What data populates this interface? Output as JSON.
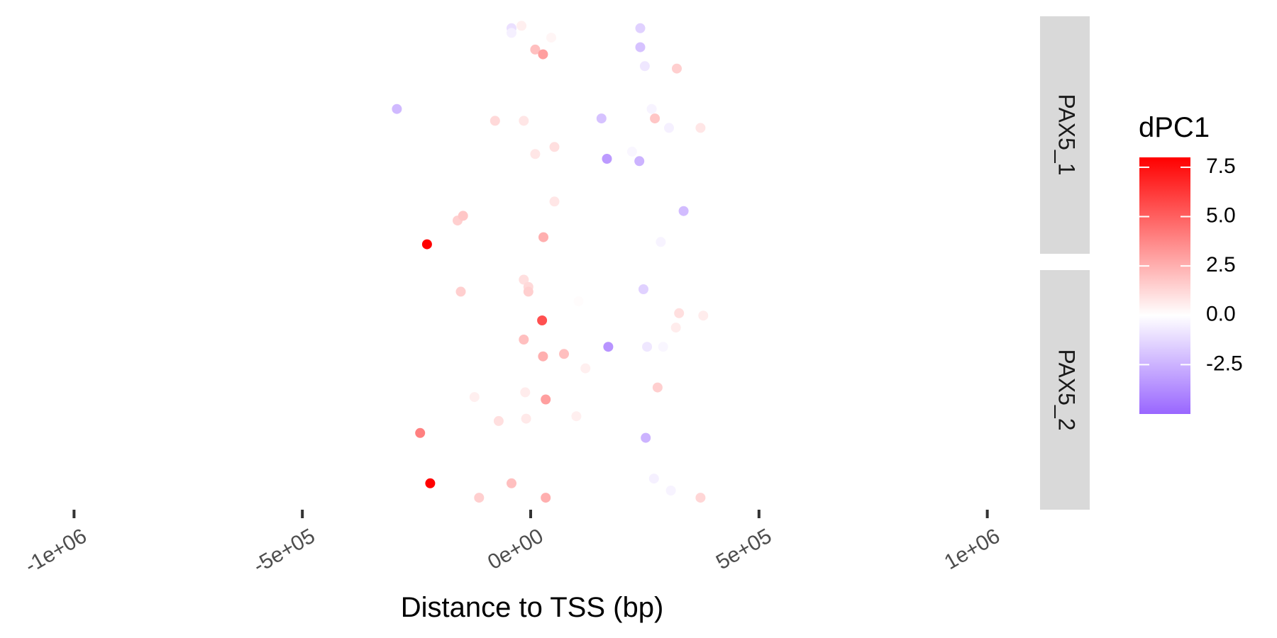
{
  "chart_data": {
    "type": "scatter",
    "xlabel": "Distance to TSS (bp)",
    "x_ticks": [
      {
        "value": -1000000,
        "label": "-1e+06"
      },
      {
        "value": -500000,
        "label": "-5e+05"
      },
      {
        "value": 0,
        "label": "0e+00"
      },
      {
        "value": 500000,
        "label": "5e+05"
      },
      {
        "value": 1000000,
        "label": "1e+06"
      }
    ],
    "xlim": [
      -1100000,
      1100000
    ],
    "grid": false,
    "legend": {
      "title": "dPC1",
      "position": "right",
      "ticks": [
        {
          "value": 7.5,
          "label": "7.5"
        },
        {
          "value": 5.0,
          "label": "5.0"
        },
        {
          "value": 2.5,
          "label": "2.5"
        },
        {
          "value": 0.0,
          "label": "0.0"
        },
        {
          "value": -2.5,
          "label": "-2.5"
        }
      ],
      "range": [
        -5.0,
        8.0
      ],
      "colors": {
        "low": "#9966ff",
        "mid": "#ffffff",
        "high": "#ff0000"
      }
    },
    "panels": [
      {
        "name": "PAX5_1",
        "points": [
          {
            "x": -42000,
            "y": 0.95,
            "v": -1.0
          },
          {
            "x": -20000,
            "y": 0.96,
            "v": 0.5
          },
          {
            "x": 240000,
            "y": 0.95,
            "v": -1.5
          },
          {
            "x": -42000,
            "y": 0.93,
            "v": -0.5
          },
          {
            "x": 45000,
            "y": 0.91,
            "v": 0.3
          },
          {
            "x": 10000,
            "y": 0.86,
            "v": 2.0
          },
          {
            "x": 27000,
            "y": 0.84,
            "v": 3.0
          },
          {
            "x": 240000,
            "y": 0.87,
            "v": -2.0
          },
          {
            "x": 320000,
            "y": 0.78,
            "v": 1.5
          },
          {
            "x": 250000,
            "y": 0.79,
            "v": -0.8
          },
          {
            "x": -293000,
            "y": 0.61,
            "v": -2.3
          },
          {
            "x": 265000,
            "y": 0.61,
            "v": -0.4
          },
          {
            "x": -78000,
            "y": 0.56,
            "v": 1.2
          },
          {
            "x": -15000,
            "y": 0.56,
            "v": 0.8
          },
          {
            "x": 155000,
            "y": 0.57,
            "v": -2.0
          },
          {
            "x": 272000,
            "y": 0.57,
            "v": 1.8
          },
          {
            "x": 303000,
            "y": 0.53,
            "v": -0.5
          },
          {
            "x": 372000,
            "y": 0.53,
            "v": 0.8
          },
          {
            "x": 52000,
            "y": 0.45,
            "v": 1.0
          },
          {
            "x": 10000,
            "y": 0.42,
            "v": 0.8
          },
          {
            "x": 167000,
            "y": 0.4,
            "v": -3.3
          },
          {
            "x": 222000,
            "y": 0.43,
            "v": -0.3
          },
          {
            "x": 238000,
            "y": 0.39,
            "v": -2.5
          },
          {
            "x": 52000,
            "y": 0.22,
            "v": 0.8
          },
          {
            "x": 335000,
            "y": 0.18,
            "v": -2.2
          },
          {
            "x": -160000,
            "y": 0.14,
            "v": 1.5
          },
          {
            "x": -148000,
            "y": 0.16,
            "v": 1.8
          },
          {
            "x": 28000,
            "y": 0.07,
            "v": 2.5
          },
          {
            "x": -227000,
            "y": 0.04,
            "v": 8.0
          },
          {
            "x": 285000,
            "y": 0.05,
            "v": -0.4
          }
        ]
      },
      {
        "name": "PAX5_2",
        "points": [
          {
            "x": -15000,
            "y": 0.96,
            "v": 1.0
          },
          {
            "x": -5000,
            "y": 0.93,
            "v": 1.2
          },
          {
            "x": -5000,
            "y": 0.91,
            "v": 1.5
          },
          {
            "x": -153000,
            "y": 0.91,
            "v": 1.5
          },
          {
            "x": 247000,
            "y": 0.92,
            "v": -1.5
          },
          {
            "x": 105000,
            "y": 0.87,
            "v": 0.1
          },
          {
            "x": 25000,
            "y": 0.79,
            "v": 5.5
          },
          {
            "x": 325000,
            "y": 0.82,
            "v": 1.0
          },
          {
            "x": 378000,
            "y": 0.81,
            "v": 0.6
          },
          {
            "x": 318000,
            "y": 0.76,
            "v": 0.6
          },
          {
            "x": -15000,
            "y": 0.71,
            "v": 2.0
          },
          {
            "x": 170000,
            "y": 0.68,
            "v": -3.5
          },
          {
            "x": 255000,
            "y": 0.68,
            "v": -0.8
          },
          {
            "x": 290000,
            "y": 0.68,
            "v": -0.3
          },
          {
            "x": 73000,
            "y": 0.65,
            "v": 2.0
          },
          {
            "x": 27000,
            "y": 0.64,
            "v": 2.5
          },
          {
            "x": 120000,
            "y": 0.59,
            "v": 0.5
          },
          {
            "x": -12000,
            "y": 0.49,
            "v": 0.6
          },
          {
            "x": 278000,
            "y": 0.51,
            "v": 1.5
          },
          {
            "x": 33000,
            "y": 0.46,
            "v": 3.0
          },
          {
            "x": -123000,
            "y": 0.47,
            "v": 0.5
          },
          {
            "x": 100000,
            "y": 0.39,
            "v": 0.5
          },
          {
            "x": -10000,
            "y": 0.38,
            "v": 0.7
          },
          {
            "x": -70000,
            "y": 0.37,
            "v": 1.0
          },
          {
            "x": -242000,
            "y": 0.32,
            "v": 4.0
          },
          {
            "x": 252000,
            "y": 0.3,
            "v": -2.5
          },
          {
            "x": 270000,
            "y": 0.13,
            "v": -0.5
          },
          {
            "x": 307000,
            "y": 0.08,
            "v": -0.4
          },
          {
            "x": -220000,
            "y": 0.11,
            "v": 8.0
          },
          {
            "x": -42000,
            "y": 0.11,
            "v": 2.0
          },
          {
            "x": -113000,
            "y": 0.05,
            "v": 1.5
          },
          {
            "x": 33000,
            "y": 0.05,
            "v": 2.5
          },
          {
            "x": 372000,
            "y": 0.05,
            "v": 1.3
          }
        ]
      }
    ]
  }
}
